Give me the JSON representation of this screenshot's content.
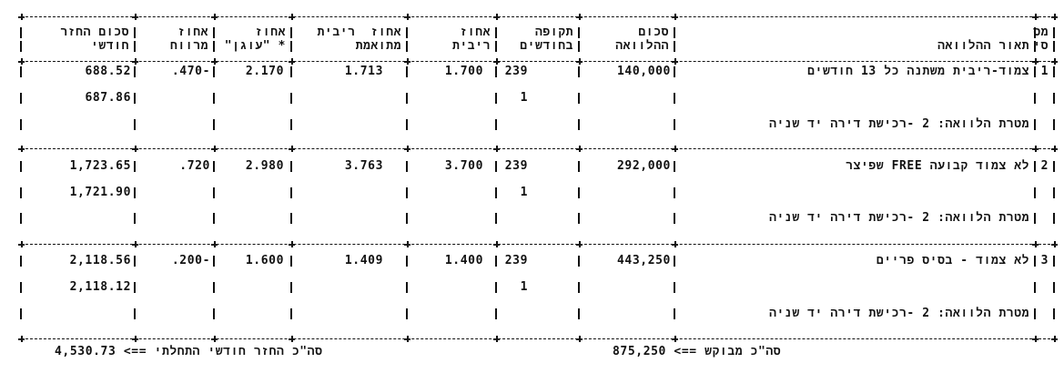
{
  "table": {
    "headers": [
      {
        "key": "num",
        "line1": "מס",
        "line2": "סי"
      },
      {
        "key": "desc",
        "line1": "",
        "line2": "תאור ההלוואה"
      },
      {
        "key": "amount",
        "line1": "סכום",
        "line2": "ההלוואה"
      },
      {
        "key": "period",
        "line1": "תקופה",
        "line2": "בחודשים"
      },
      {
        "key": "rate",
        "line1": "אחוז",
        "line2": "ריבית"
      },
      {
        "key": "adjusted_rate",
        "line1": "אחוז  ריבית",
        "line2": "מתואמת"
      },
      {
        "key": "anchor",
        "line1": "אחוז",
        "line2": "* \"עוגן\""
      },
      {
        "key": "margin",
        "line1": "אחוז",
        "line2": "מרווח"
      },
      {
        "key": "payment",
        "line1": "סכום החזר",
        "line2": "חודשי"
      }
    ],
    "rows": [
      {
        "num": "1",
        "desc": "צמוד-ריבית משתנה כל 13 חודשים",
        "amount": "140,000",
        "period": "239",
        "rate": "1.700",
        "adjusted_rate": "1.713",
        "anchor": "2.170",
        "margin": ".470-",
        "payment": "688.52",
        "period2": "1",
        "payment2": "687.86",
        "purpose": "מטרת הלוואה: 2 -רכישת דירה יד שניה"
      },
      {
        "num": "2",
        "desc": "לא צמוד קבועה FREE שפיצר",
        "amount": "292,000",
        "period": "239",
        "rate": "3.700",
        "adjusted_rate": "3.763",
        "anchor": "2.980",
        "margin": ".720",
        "payment": "1,723.65",
        "period2": "1",
        "payment2": "1,721.90",
        "purpose": "מטרת הלוואה: 2 -רכישת דירה יד שניה"
      },
      {
        "num": "3",
        "desc": "לא צמוד - בסיס פריים",
        "amount": "443,250",
        "period": "239",
        "rate": "1.400",
        "adjusted_rate": "1.409",
        "anchor": "1.600",
        "margin": ".200-",
        "payment": "2,118.56",
        "period2": "1",
        "payment2": "2,118.12",
        "purpose": "מטרת הלוואה: 2 -רכישת דירה יד שניה"
      }
    ]
  },
  "totals": {
    "requested": "875,250 <== סה\"כ מבוקש",
    "initial_monthly_payment": "4,530.73 <== סה\"כ החזר חודשי התחלתי"
  }
}
